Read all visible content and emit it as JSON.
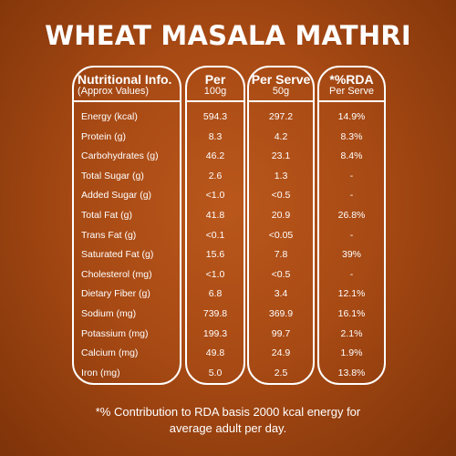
{
  "title": "WHEAT MASALA MATHRI",
  "headers": {
    "nutrient": {
      "main": "Nutritional Info.",
      "sub": "(Approx Values)"
    },
    "per100g": {
      "main": "Per",
      "sub": "100g"
    },
    "perServe": {
      "main": "Per Serve",
      "sub": "50g"
    },
    "rda": {
      "main": "*%RDA",
      "sub": "Per Serve"
    }
  },
  "rows": [
    {
      "name": "Energy (kcal)",
      "per100g": "594.3",
      "perServe": "297.2",
      "rda": "14.9%"
    },
    {
      "name": "Protein (g)",
      "per100g": "8.3",
      "perServe": "4.2",
      "rda": "8.3%"
    },
    {
      "name": "Carbohydrates (g)",
      "per100g": "46.2",
      "perServe": "23.1",
      "rda": "8.4%"
    },
    {
      "name": "Total Sugar (g)",
      "per100g": "2.6",
      "perServe": "1.3",
      "rda": "-"
    },
    {
      "name": "Added Sugar (g)",
      "per100g": "<1.0",
      "perServe": "<0.5",
      "rda": "-"
    },
    {
      "name": "Total Fat (g)",
      "per100g": "41.8",
      "perServe": "20.9",
      "rda": "26.8%"
    },
    {
      "name": "Trans Fat (g)",
      "per100g": "<0.1",
      "perServe": "<0.05",
      "rda": "-"
    },
    {
      "name": "Saturated Fat (g)",
      "per100g": "15.6",
      "perServe": "7.8",
      "rda": "39%"
    },
    {
      "name": "Cholesterol (mg)",
      "per100g": "<1.0",
      "perServe": "<0.5",
      "rda": "-"
    },
    {
      "name": "Dietary Fiber (g)",
      "per100g": "6.8",
      "perServe": "3.4",
      "rda": "12.1%"
    },
    {
      "name": "Sodium (mg)",
      "per100g": "739.8",
      "perServe": "369.9",
      "rda": "16.1%"
    },
    {
      "name": "Potassium (mg)",
      "per100g": "199.3",
      "perServe": "99.7",
      "rda": "2.1%"
    },
    {
      "name": "Calcium (mg)",
      "per100g": "49.8",
      "perServe": "24.9",
      "rda": "1.9%"
    },
    {
      "name": "Iron (mg)",
      "per100g": "5.0",
      "perServe": "2.5",
      "rda": "13.8%"
    }
  ],
  "footnote": {
    "line1": "*% Contribution to RDA basis 2000 kcal energy for",
    "line2": "average adult per day."
  }
}
